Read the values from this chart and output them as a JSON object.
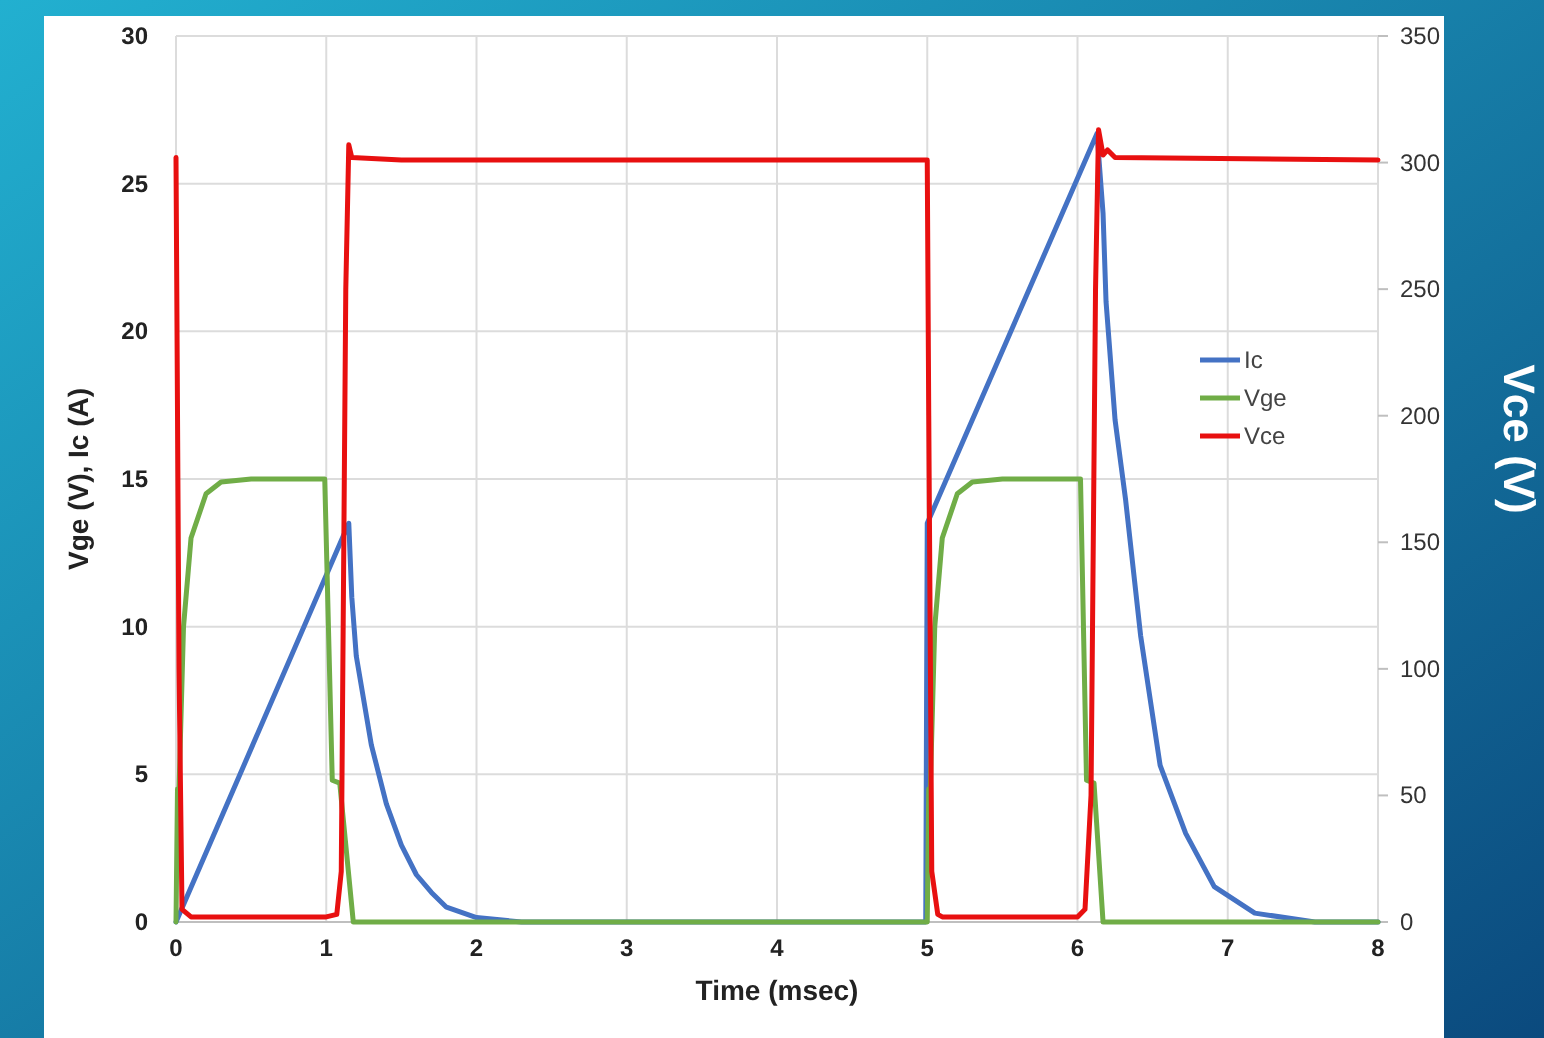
{
  "chart_data": {
    "type": "line",
    "xlabel": "Time (msec)",
    "ylabel": "Vge (V), Ic (A)",
    "y2label": "Vce (V)",
    "xlim": [
      0,
      8
    ],
    "xticks": [
      0,
      1,
      2,
      3,
      4,
      5,
      6,
      7,
      8
    ],
    "ylim": [
      0,
      30
    ],
    "yticks": [
      0,
      5,
      10,
      15,
      20,
      25,
      30
    ],
    "y2lim": [
      0,
      350
    ],
    "y2ticks": [
      0,
      50,
      100,
      150,
      200,
      250,
      300,
      350
    ],
    "grid": true,
    "legend": "right",
    "marker": "none",
    "line_style": "solid",
    "series": [
      {
        "name": "Ic",
        "color": "#4472c4",
        "x": [
          0,
          1.15,
          1.17,
          1.2,
          1.3,
          1.4,
          1.5,
          1.6,
          1.7,
          1.8,
          2.0,
          2.3,
          4.99,
          5.0,
          6.13,
          6.17,
          6.19,
          6.25,
          6.32,
          6.42,
          6.55,
          6.72,
          6.91,
          7.18,
          7.58,
          8
        ],
        "values": [
          0,
          13.5,
          11,
          9,
          6,
          4,
          2.6,
          1.6,
          1,
          0.5,
          0.15,
          0,
          0,
          13.5,
          26.7,
          24,
          21,
          17,
          14.3,
          9.7,
          5.3,
          3,
          1.2,
          0.3,
          0,
          0
        ]
      },
      {
        "name": "Vge",
        "color": "#70ad47",
        "x": [
          0,
          0.01,
          0.02,
          0.05,
          0.1,
          0.2,
          0.3,
          0.5,
          0.99,
          1.04,
          1.09,
          1.18,
          4.99,
          5.0,
          5.01,
          5.02,
          5.05,
          5.1,
          5.2,
          5.3,
          5.5,
          6.02,
          6.06,
          6.11,
          6.17,
          8
        ],
        "values": [
          0,
          4.5,
          4.5,
          10,
          13,
          14.5,
          14.9,
          15,
          15,
          4.8,
          4.7,
          0,
          0,
          0,
          4.5,
          4.5,
          10,
          13,
          14.5,
          14.9,
          15,
          15,
          4.8,
          4.7,
          0,
          0
        ]
      },
      {
        "name": "Vce",
        "color": "#e81010",
        "axis": "y2",
        "x": [
          0,
          0.02,
          0.04,
          0.1,
          1.0,
          1.07,
          1.1,
          1.13,
          1.15,
          1.17,
          1.5,
          5.0,
          5.01,
          5.03,
          5.07,
          5.1,
          6.0,
          6.05,
          6.09,
          6.12,
          6.14,
          6.17,
          6.2,
          6.25,
          8
        ],
        "values": [
          302,
          100,
          5,
          2,
          2,
          3,
          20,
          250,
          307,
          302,
          301,
          301,
          200,
          20,
          3,
          2,
          2,
          5,
          50,
          250,
          313,
          303,
          305,
          302,
          301
        ]
      }
    ]
  }
}
